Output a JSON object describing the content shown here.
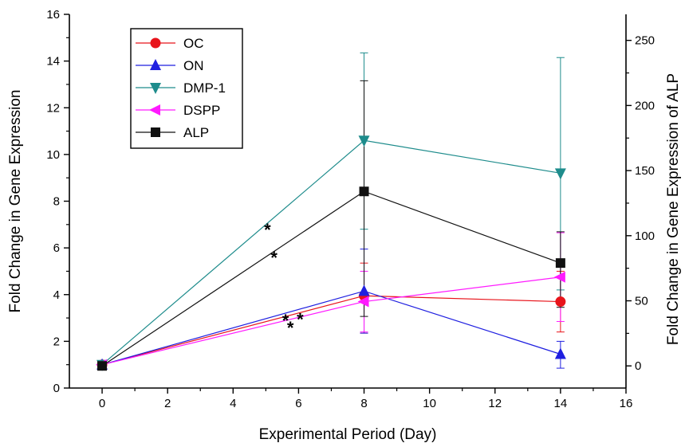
{
  "chart_data": {
    "type": "line",
    "xlabel": "Experimental Period (Day)",
    "ylabel": "Fold Change in Gene Expression",
    "y2label": "Fold Change in Gene Expression  of ALP",
    "xlim": [
      -1,
      16
    ],
    "ylim": [
      0,
      16
    ],
    "y2lim": [
      -17,
      270
    ],
    "x_ticks": [
      "0",
      "2",
      "4",
      "6",
      "8",
      "10",
      "12",
      "14",
      "16"
    ],
    "y_ticks": [
      "0",
      "2",
      "4",
      "6",
      "8",
      "10",
      "12",
      "14",
      "16"
    ],
    "y2_ticks": [
      "0",
      "50",
      "100",
      "150",
      "200",
      "250"
    ],
    "legend_position": "top-left",
    "series": [
      {
        "name": "OC",
        "color": "#e8141b",
        "marker": "circle",
        "axis": "left",
        "x": [
          0,
          8,
          14
        ],
        "y": [
          1.0,
          3.95,
          3.7
        ],
        "err_low": [
          null,
          2.35,
          2.4
        ],
        "err_high": [
          null,
          5.35,
          5.0
        ]
      },
      {
        "name": "ON",
        "color": "#1f1fe0",
        "marker": "triangle-up",
        "axis": "left",
        "x": [
          0,
          8,
          14
        ],
        "y": [
          1.0,
          4.15,
          1.45
        ],
        "err_low": [
          null,
          2.35,
          0.85
        ],
        "err_high": [
          null,
          5.95,
          2.0
        ]
      },
      {
        "name": "DMP-1",
        "color": "#1e8c8c",
        "marker": "triangle-down",
        "axis": "left",
        "x": [
          0,
          8,
          14
        ],
        "y": [
          1.0,
          10.6,
          9.2
        ],
        "err_low": [
          null,
          6.8,
          4.2
        ],
        "err_high": [
          null,
          14.35,
          14.15
        ]
      },
      {
        "name": "DSPP",
        "color": "#ff1aff",
        "marker": "triangle-left",
        "axis": "left",
        "x": [
          0,
          8,
          14
        ],
        "y": [
          1.0,
          3.7,
          4.75
        ],
        "err_low": [
          null,
          2.4,
          2.85
        ],
        "err_high": [
          null,
          5.0,
          6.65
        ]
      },
      {
        "name": "ALP",
        "color": "#111111",
        "marker": "square",
        "axis": "right",
        "x": [
          0,
          8,
          14
        ],
        "y": [
          0,
          134,
          79
        ],
        "err_low": [
          null,
          38,
          45
        ],
        "err_high": [
          null,
          219,
          103
        ]
      }
    ],
    "annotations": [
      {
        "text": "*",
        "x": 5.05,
        "y": 7.0
      },
      {
        "text": "*",
        "x": 5.25,
        "y": 5.8
      },
      {
        "text": "*",
        "x": 5.6,
        "y": 3.1
      },
      {
        "text": "*",
        "x": 6.05,
        "y": 3.15
      },
      {
        "text": "*",
        "x": 5.75,
        "y": 2.8
      }
    ]
  }
}
